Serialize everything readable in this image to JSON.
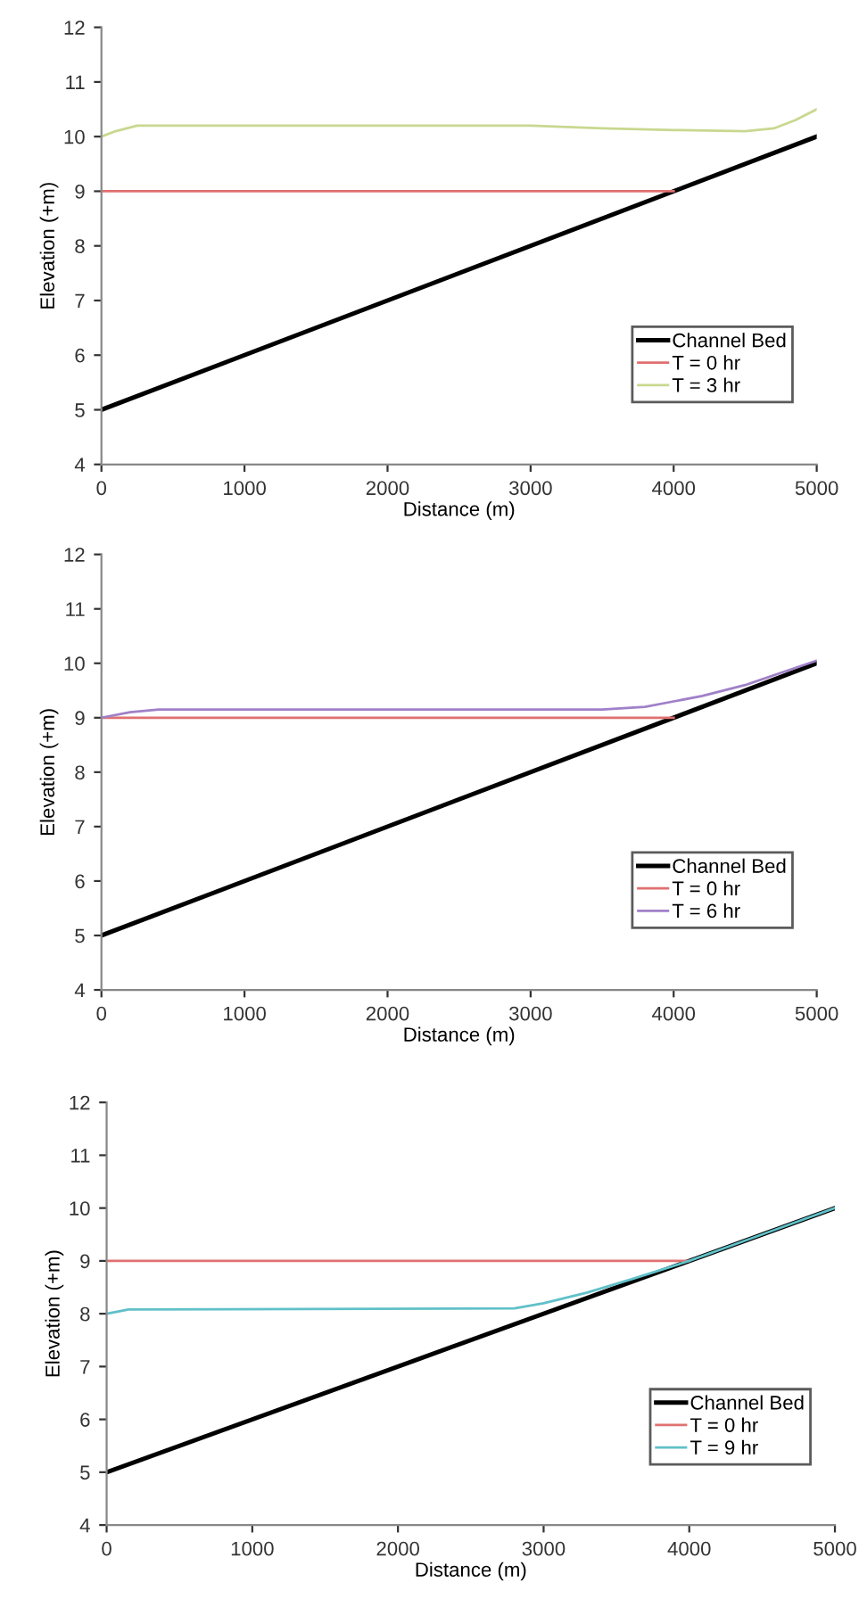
{
  "chart_data": [
    {
      "type": "line",
      "xlabel": "Distance (m)",
      "ylabel": "Elevation (+m)",
      "xlim": [
        0,
        5000
      ],
      "xticks": [
        0,
        1000,
        2000,
        3000,
        4000,
        5000
      ],
      "ylim": [
        4,
        12
      ],
      "yticks": [
        4,
        5,
        6,
        7,
        8,
        9,
        10,
        11,
        12
      ],
      "legend": "bottom right",
      "grid": false,
      "series": [
        {
          "name": "Channel Bed",
          "color": "#000000",
          "x": [
            0,
            5000
          ],
          "values": [
            5,
            10
          ]
        },
        {
          "name": "T = 0 hr",
          "color": "#e07070",
          "x": [
            0,
            4000
          ],
          "values": [
            9,
            9
          ]
        },
        {
          "name": "T = 3 hr",
          "color": "#c8d890",
          "x": [
            0,
            100,
            250,
            1000,
            2000,
            3000,
            3500,
            4000,
            4500,
            4700,
            4850,
            5000
          ],
          "values": [
            10,
            10.1,
            10.2,
            10.2,
            10.2,
            10.2,
            10.15,
            10.12,
            10.1,
            10.15,
            10.3,
            10.5
          ]
        }
      ]
    },
    {
      "type": "line",
      "xlabel": "Distance (m)",
      "ylabel": "Elevation (+m)",
      "xlim": [
        0,
        5000
      ],
      "xticks": [
        0,
        1000,
        2000,
        3000,
        4000,
        5000
      ],
      "ylim": [
        4,
        12
      ],
      "yticks": [
        4,
        5,
        6,
        7,
        8,
        9,
        10,
        11,
        12
      ],
      "legend": "bottom right",
      "grid": false,
      "series": [
        {
          "name": "Channel Bed",
          "color": "#000000",
          "x": [
            0,
            5000
          ],
          "values": [
            5,
            10
          ]
        },
        {
          "name": "T = 0 hr",
          "color": "#e07070",
          "x": [
            0,
            4000
          ],
          "values": [
            9,
            9
          ]
        },
        {
          "name": "T = 6 hr",
          "color": "#a080c8",
          "x": [
            0,
            200,
            400,
            3500,
            3800,
            4000,
            4200,
            4500,
            5000
          ],
          "values": [
            9,
            9.1,
            9.15,
            9.15,
            9.2,
            9.3,
            9.4,
            9.6,
            10.05
          ]
        }
      ]
    },
    {
      "type": "line",
      "xlabel": "Distance (m)",
      "ylabel": "Elevation (+m)",
      "xlim": [
        0,
        5000
      ],
      "xticks": [
        0,
        1000,
        2000,
        3000,
        4000,
        5000
      ],
      "ylim": [
        4,
        12
      ],
      "yticks": [
        4,
        5,
        6,
        7,
        8,
        9,
        10,
        11,
        12
      ],
      "legend": "bottom right",
      "grid": false,
      "series": [
        {
          "name": "Channel Bed",
          "color": "#000000",
          "x": [
            0,
            5000
          ],
          "values": [
            5,
            10
          ]
        },
        {
          "name": "T = 0 hr",
          "color": "#e07070",
          "x": [
            0,
            4000
          ],
          "values": [
            9,
            9
          ]
        },
        {
          "name": "T = 9 hr",
          "color": "#60c0c8",
          "x": [
            0,
            150,
            2800,
            3000,
            3300,
            3600,
            4000,
            4500,
            5000
          ],
          "values": [
            8,
            8.08,
            8.1,
            8.2,
            8.4,
            8.65,
            9.0,
            9.5,
            10
          ]
        }
      ]
    }
  ]
}
